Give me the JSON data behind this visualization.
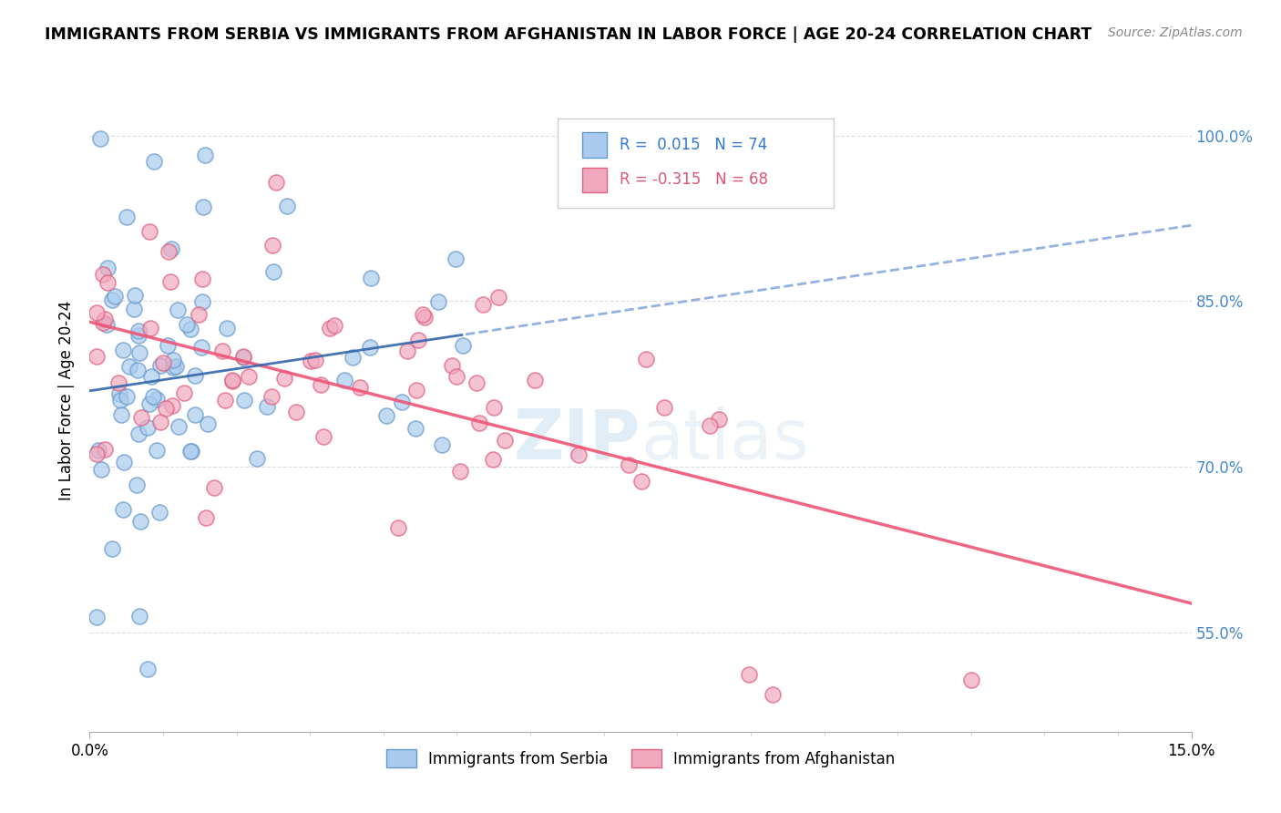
{
  "title": "IMMIGRANTS FROM SERBIA VS IMMIGRANTS FROM AFGHANISTAN IN LABOR FORCE | AGE 20-24 CORRELATION CHART",
  "source": "Source: ZipAtlas.com",
  "ylabel": "In Labor Force | Age 20-24",
  "yaxis_ticks": [
    0.55,
    0.7,
    0.85,
    1.0
  ],
  "yaxis_labels": [
    "55.0%",
    "70.0%",
    "85.0%",
    "100.0%"
  ],
  "xmin": 0.0,
  "xmax": 0.15,
  "ymin": 0.46,
  "ymax": 1.06,
  "serbia_color": "#aacbee",
  "afghanistan_color": "#f0a8be",
  "serbia_edge_color": "#6699cc",
  "afghanistan_edge_color": "#e06080",
  "serbia_R": 0.015,
  "serbia_N": 74,
  "afghanistan_R": -0.315,
  "afghanistan_N": 68,
  "serbia_trend_solid_color": "#3366aa",
  "serbia_trend_dash_color": "#88aadd",
  "afghanistan_trend_color": "#ee5577",
  "watermark_color": "#d8e8f0",
  "legend_serbia_color": "#aacbee",
  "legend_afghanistan_color": "#f0a8be",
  "serbia_legend_text_color": "#3377cc",
  "afghanistan_legend_text_color": "#dd5577"
}
